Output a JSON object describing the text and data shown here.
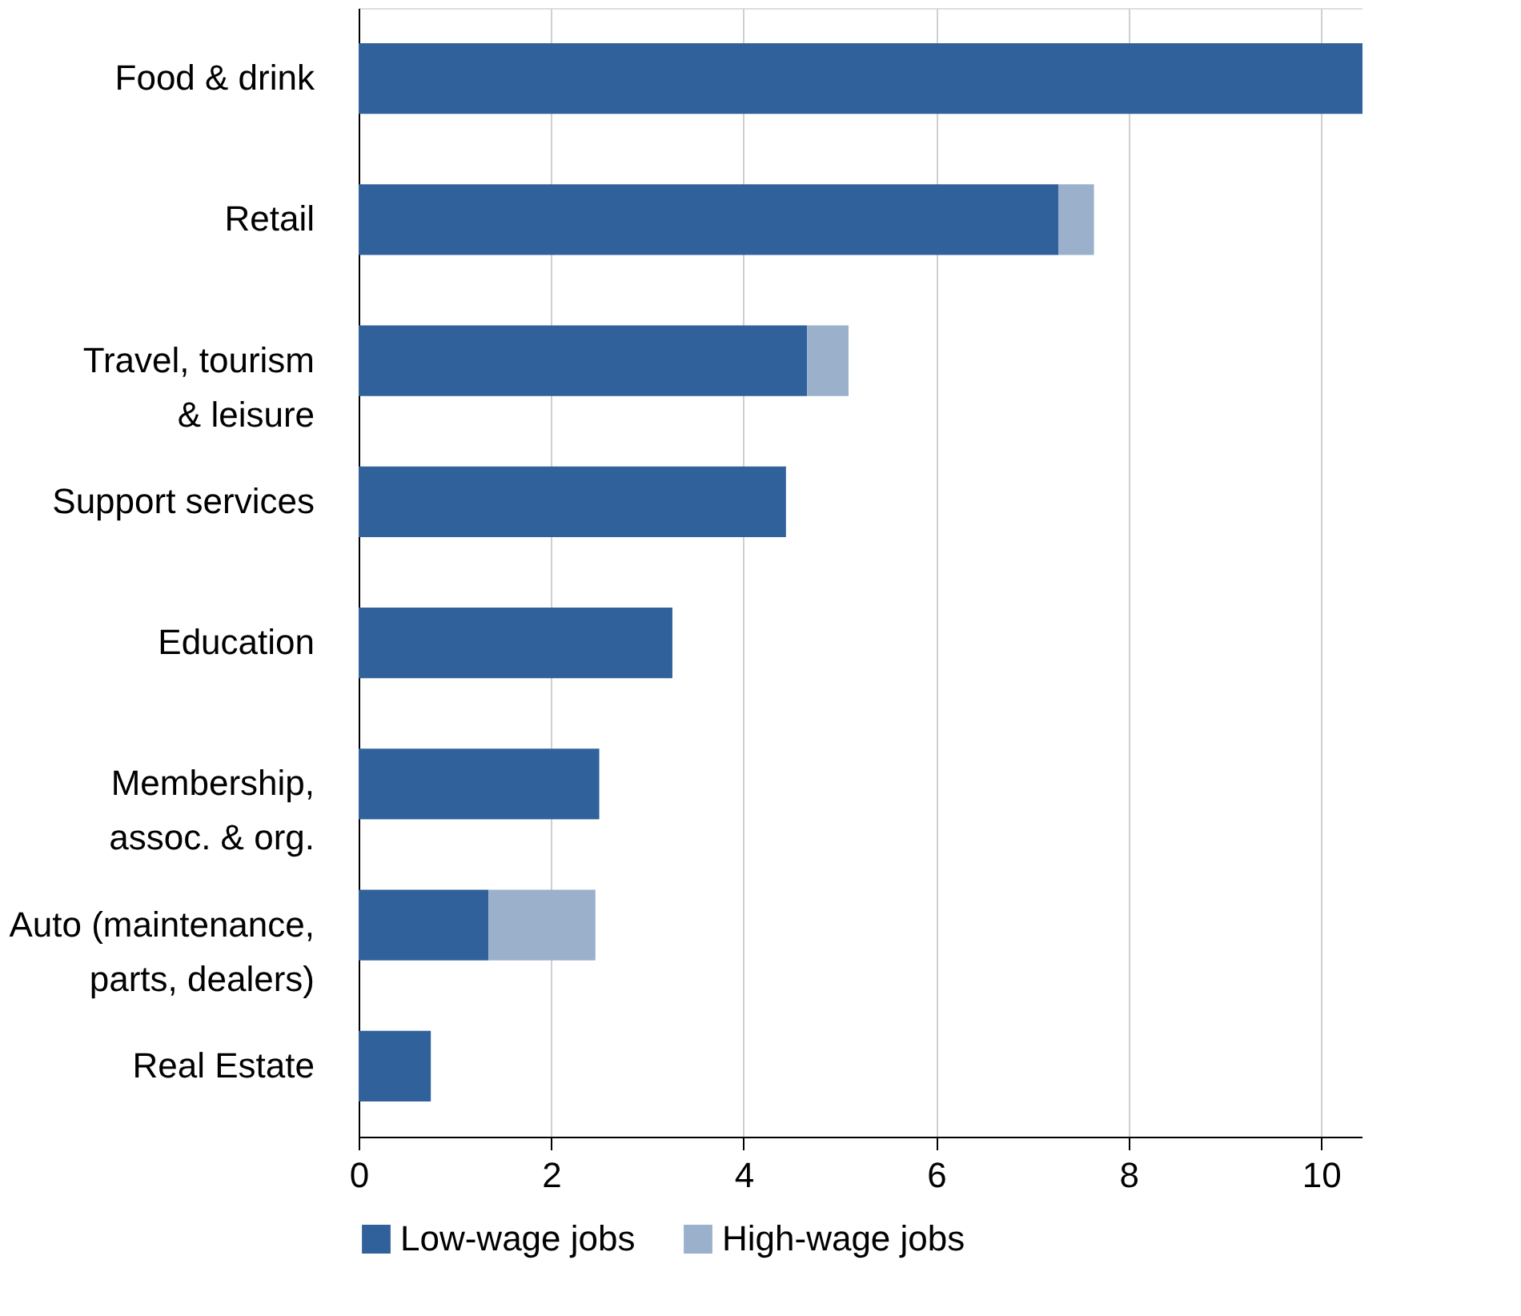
{
  "chart_data": {
    "type": "bar",
    "orientation": "horizontal",
    "stacked": true,
    "categories": [
      "Food & drink",
      "Retail",
      "Travel, tourism\n& leisure",
      "Support services",
      "Education",
      "Membership,\nassoc. & org.",
      "Auto (maintenance,\nparts, dealers)",
      "Real Estate"
    ],
    "series": [
      {
        "name": "Low-wage jobs",
        "color": "#31619a",
        "values": [
          10.43,
          7.27,
          4.66,
          4.44,
          3.26,
          2.5,
          1.35,
          0.75
        ]
      },
      {
        "name": "High-wage jobs",
        "color": "#9ab0cb",
        "values": [
          null,
          0.37,
          0.43,
          null,
          null,
          null,
          1.11,
          null
        ]
      }
    ],
    "xlim": [
      0,
      10.43
    ],
    "xticks": [
      0,
      2,
      4,
      6,
      8,
      10
    ],
    "grid": "x",
    "legend": "bottom"
  }
}
